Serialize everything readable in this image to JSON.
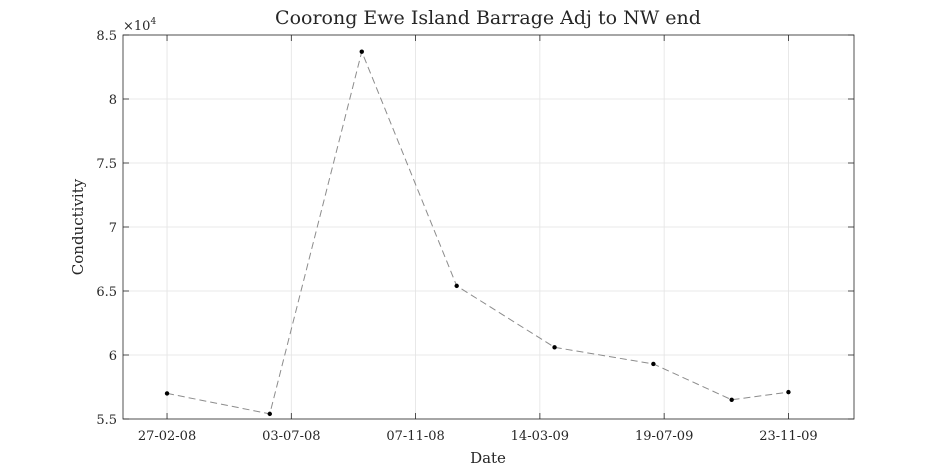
{
  "chart_data": {
    "type": "line",
    "title": "Coorong Ewe Island Barrage Adj to NW end",
    "xlabel": "Date",
    "ylabel": "Conductivity",
    "y_exponent_label": "×10",
    "y_exponent_power": "4",
    "xlim": [
      "2008-01-13",
      "2010-01-29"
    ],
    "ylim": [
      5.5,
      8.5
    ],
    "y_scale": 10000,
    "grid": true,
    "x_ticks": [
      {
        "date": "2008-02-27",
        "label": "27-02-08"
      },
      {
        "date": "2008-07-03",
        "label": "03-07-08"
      },
      {
        "date": "2008-11-07",
        "label": "07-11-08"
      },
      {
        "date": "2009-03-14",
        "label": "14-03-09"
      },
      {
        "date": "2009-07-19",
        "label": "19-07-09"
      },
      {
        "date": "2009-11-23",
        "label": "23-11-09"
      }
    ],
    "y_ticks": [
      {
        "value": 5.5,
        "label": "5.5"
      },
      {
        "value": 6,
        "label": "6"
      },
      {
        "value": 6.5,
        "label": "6.5"
      },
      {
        "value": 7,
        "label": "7"
      },
      {
        "value": 7.5,
        "label": "7.5"
      },
      {
        "value": 8,
        "label": "8"
      },
      {
        "value": 8.5,
        "label": "8.5"
      }
    ],
    "series": [
      {
        "color": "#8c8c8c",
        "marker_color": "#000000",
        "line_style": "dashed",
        "points": [
          {
            "x": "2008-02-27",
            "y": 57000
          },
          {
            "x": "2008-06-11",
            "y": 55400
          },
          {
            "x": "2008-09-13",
            "y": 83700
          },
          {
            "x": "2008-12-19",
            "y": 65400
          },
          {
            "x": "2009-03-29",
            "y": 60600
          },
          {
            "x": "2009-07-08",
            "y": 59300
          },
          {
            "x": "2009-09-26",
            "y": 56500
          },
          {
            "x": "2009-11-23",
            "y": 57100
          }
        ]
      }
    ]
  }
}
